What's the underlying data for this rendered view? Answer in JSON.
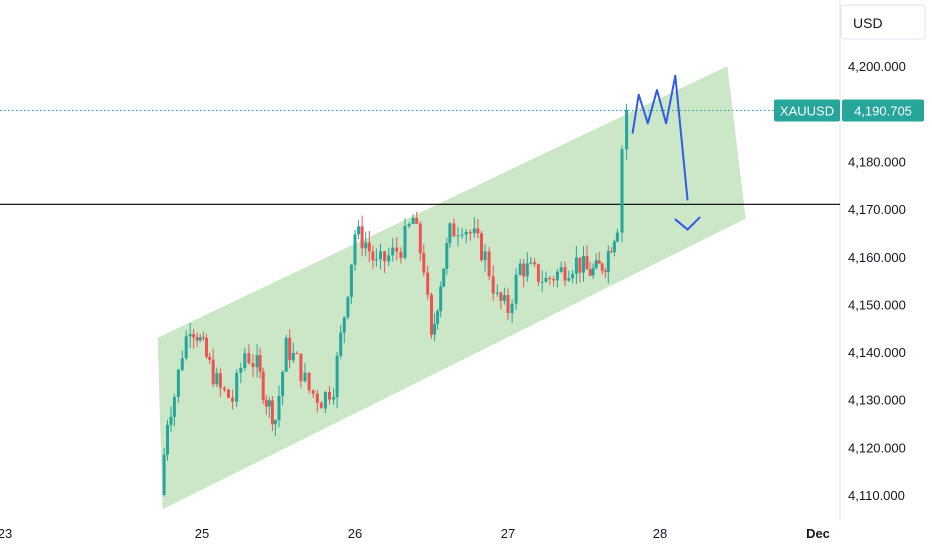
{
  "chart_data": {
    "type": "candlestick",
    "symbol": "XAUUSD",
    "currency": "USD",
    "last_price": 4190.705,
    "last_price_label": "4,190.705",
    "ylim": [
      4104,
      4210
    ],
    "y_ticks": [
      {
        "value": 4200,
        "label": "4,200.000"
      },
      {
        "value": 4190,
        "label": "4,190.000"
      },
      {
        "value": 4180,
        "label": "4,180.000"
      },
      {
        "value": 4170,
        "label": "4,170.000"
      },
      {
        "value": 4160,
        "label": "4,160.000"
      },
      {
        "value": 4150,
        "label": "4,150.000"
      },
      {
        "value": 4140,
        "label": "4,140.000"
      },
      {
        "value": 4130,
        "label": "4,130.000"
      },
      {
        "value": 4120,
        "label": "4,120.000"
      },
      {
        "value": 4110,
        "label": "4,110.000"
      }
    ],
    "x_ticks": [
      {
        "day": 23.0,
        "label": "23"
      },
      {
        "day": 25.0,
        "label": "25"
      },
      {
        "day": 26.0,
        "label": "26"
      },
      {
        "day": 27.0,
        "label": "27"
      },
      {
        "day": 28.0,
        "label": "28"
      },
      {
        "day": 29.0,
        "label": "Dec"
      }
    ],
    "horizontal_level": 4171.0,
    "channel": {
      "upper": [
        [
          24.55,
          4143
        ],
        [
          28.44,
          4200
        ]
      ],
      "lower": [
        [
          24.6,
          4107
        ],
        [
          28.56,
          4168
        ]
      ],
      "color": "#c8e6c4"
    },
    "projection": {
      "color": "#2f5bea",
      "points": [
        [
          27.82,
          4186
        ],
        [
          27.86,
          4194
        ],
        [
          27.92,
          4188
        ],
        [
          27.98,
          4195
        ],
        [
          28.04,
          4188
        ],
        [
          28.1,
          4198
        ],
        [
          28.18,
          4172
        ]
      ]
    },
    "candle_colors": {
      "up": "#26a69a",
      "down": "#ef5350"
    },
    "anchors": [
      [
        24.58,
        4111
      ],
      [
        24.65,
        4126
      ],
      [
        24.72,
        4131
      ],
      [
        24.8,
        4140
      ],
      [
        24.88,
        4146
      ],
      [
        24.95,
        4144
      ],
      [
        25.05,
        4137
      ],
      [
        25.12,
        4132
      ],
      [
        25.2,
        4130
      ],
      [
        25.28,
        4140
      ],
      [
        25.36,
        4137
      ],
      [
        25.42,
        4130
      ],
      [
        25.48,
        4126
      ],
      [
        25.55,
        4141
      ],
      [
        25.62,
        4138
      ],
      [
        25.7,
        4132
      ],
      [
        25.78,
        4130
      ],
      [
        25.86,
        4133
      ],
      [
        25.93,
        4148
      ],
      [
        26.0,
        4165
      ],
      [
        26.07,
        4163
      ],
      [
        26.14,
        4158
      ],
      [
        26.22,
        4160
      ],
      [
        26.3,
        4162
      ],
      [
        26.38,
        4168
      ],
      [
        26.45,
        4158
      ],
      [
        26.5,
        4142
      ],
      [
        26.56,
        4155
      ],
      [
        26.62,
        4165
      ],
      [
        26.7,
        4167
      ],
      [
        26.78,
        4164
      ],
      [
        26.85,
        4160
      ],
      [
        26.93,
        4151
      ],
      [
        27.0,
        4149
      ],
      [
        27.08,
        4158
      ],
      [
        27.15,
        4157
      ],
      [
        27.25,
        4155
      ],
      [
        27.35,
        4157
      ],
      [
        27.45,
        4159
      ],
      [
        27.52,
        4157
      ],
      [
        27.58,
        4157
      ],
      [
        27.64,
        4159
      ],
      [
        27.68,
        4163
      ],
      [
        27.72,
        4167
      ],
      [
        27.75,
        4183
      ],
      [
        27.78,
        4191
      ]
    ]
  }
}
